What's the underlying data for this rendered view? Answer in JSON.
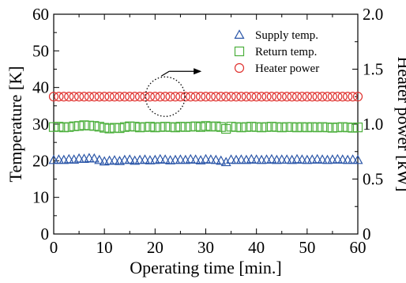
{
  "chart_data": {
    "type": "scatter",
    "xlabel": "Operating time [min.]",
    "ylabel": "Temperature [K]",
    "y2label": "Heater power [kW]",
    "xlim": [
      0,
      60
    ],
    "ylim": [
      0,
      60
    ],
    "y2lim": [
      0,
      2.0
    ],
    "xticks": [
      "0",
      "10",
      "20",
      "30",
      "40",
      "50",
      "60"
    ],
    "yticks": [
      "0",
      "10",
      "20",
      "30",
      "40",
      "50",
      "60"
    ],
    "y2ticks": [
      "0",
      "0.5",
      "1.0",
      "1.5",
      "2.0"
    ],
    "grid": false,
    "legend_position": "top-right",
    "series": [
      {
        "name": "Supply temp.",
        "marker": "triangle",
        "color": "#2b56a8",
        "axis": "left",
        "x": [
          0,
          1,
          2,
          3,
          4,
          5,
          6,
          7,
          8,
          9,
          10,
          11,
          12,
          13,
          14,
          15,
          16,
          17,
          18,
          19,
          20,
          21,
          22,
          23,
          24,
          25,
          26,
          27,
          28,
          29,
          30,
          31,
          32,
          33,
          34,
          35,
          36,
          37,
          38,
          39,
          40,
          41,
          42,
          43,
          44,
          45,
          46,
          47,
          48,
          49,
          50,
          51,
          52,
          53,
          54,
          55,
          56,
          57,
          58,
          59,
          60
        ],
        "y": [
          20.2,
          20.3,
          20.2,
          20.4,
          20.3,
          20.6,
          20.5,
          20.7,
          20.6,
          20.2,
          19.8,
          20.0,
          20.1,
          19.9,
          20.2,
          20.3,
          20.0,
          20.2,
          20.3,
          20.1,
          20.2,
          20.4,
          20.3,
          20.1,
          20.2,
          20.3,
          20.2,
          20.4,
          20.3,
          20.1,
          20.4,
          20.3,
          20.2,
          20.0,
          19.6,
          20.3,
          20.2,
          20.3,
          20.2,
          20.4,
          20.3,
          20.2,
          20.3,
          20.4,
          20.2,
          20.3,
          20.3,
          20.2,
          20.4,
          20.3,
          20.2,
          20.3,
          20.4,
          20.3,
          20.2,
          20.3,
          20.4,
          20.3,
          20.2,
          20.3,
          20.2
        ]
      },
      {
        "name": "Return temp.",
        "marker": "square",
        "color": "#4caf3c",
        "axis": "left",
        "x": [
          0,
          1,
          2,
          3,
          4,
          5,
          6,
          7,
          8,
          9,
          10,
          11,
          12,
          13,
          14,
          15,
          16,
          17,
          18,
          19,
          20,
          21,
          22,
          23,
          24,
          25,
          26,
          27,
          28,
          29,
          30,
          31,
          32,
          33,
          34,
          35,
          36,
          37,
          38,
          39,
          40,
          41,
          42,
          43,
          44,
          45,
          46,
          47,
          48,
          49,
          50,
          51,
          52,
          53,
          54,
          55,
          56,
          57,
          58,
          59,
          60
        ],
        "y": [
          29.2,
          29.3,
          29.1,
          29.2,
          29.4,
          29.5,
          29.7,
          29.6,
          29.5,
          29.3,
          29.0,
          28.8,
          29.0,
          28.9,
          29.2,
          29.4,
          29.3,
          29.1,
          29.2,
          29.3,
          29.1,
          29.2,
          29.3,
          29.2,
          29.1,
          29.3,
          29.2,
          29.3,
          29.4,
          29.2,
          29.5,
          29.3,
          29.4,
          29.2,
          28.7,
          29.3,
          29.2,
          29.1,
          29.2,
          29.3,
          29.2,
          29.1,
          29.2,
          29.3,
          29.2,
          29.1,
          29.2,
          29.2,
          29.1,
          29.2,
          29.1,
          29.2,
          29.1,
          29.2,
          29.1,
          29.0,
          29.1,
          29.2,
          29.1,
          29.0,
          29.1
        ]
      },
      {
        "name": "Heater power",
        "marker": "circle",
        "color": "#e0322f",
        "axis": "right",
        "x": [
          0,
          1,
          2,
          3,
          4,
          5,
          6,
          7,
          8,
          9,
          10,
          11,
          12,
          13,
          14,
          15,
          16,
          17,
          18,
          19,
          20,
          21,
          22,
          23,
          24,
          25,
          26,
          27,
          28,
          29,
          30,
          31,
          32,
          33,
          34,
          35,
          36,
          37,
          38,
          39,
          40,
          41,
          42,
          43,
          44,
          45,
          46,
          47,
          48,
          49,
          50,
          51,
          52,
          53,
          54,
          55,
          56,
          57,
          58,
          59,
          60
        ],
        "y": [
          1.25,
          1.25,
          1.25,
          1.25,
          1.25,
          1.25,
          1.25,
          1.25,
          1.25,
          1.25,
          1.25,
          1.25,
          1.25,
          1.25,
          1.25,
          1.25,
          1.25,
          1.25,
          1.25,
          1.25,
          1.25,
          1.25,
          1.25,
          1.25,
          1.25,
          1.25,
          1.25,
          1.25,
          1.25,
          1.25,
          1.25,
          1.25,
          1.25,
          1.25,
          1.25,
          1.25,
          1.25,
          1.25,
          1.25,
          1.25,
          1.25,
          1.25,
          1.25,
          1.25,
          1.25,
          1.25,
          1.25,
          1.25,
          1.25,
          1.25,
          1.25,
          1.25,
          1.25,
          1.25,
          1.25,
          1.25,
          1.25,
          1.25,
          1.25,
          1.25,
          1.25
        ]
      }
    ],
    "annotation": {
      "type": "dotted-circle-arrow",
      "points_to": "right-axis",
      "x": 22,
      "y": 37.5
    }
  }
}
